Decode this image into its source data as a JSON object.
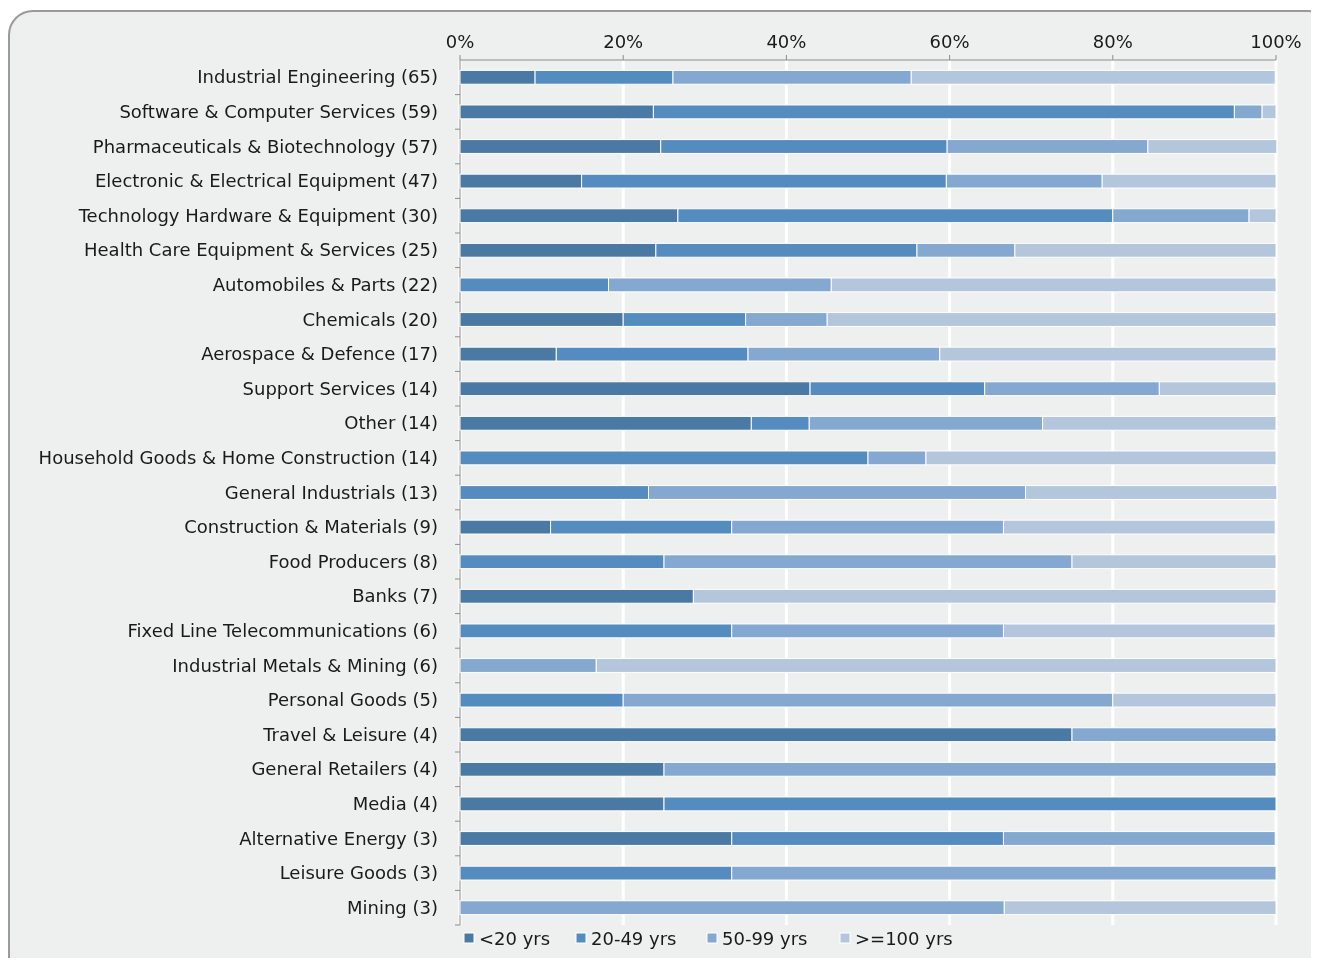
{
  "chart_data": {
    "type": "bar",
    "orientation": "horizontal",
    "stacked": true,
    "categories": [
      "Industrial Engineering (65)",
      "Software & Computer Services (59)",
      "Pharmaceuticals & Biotechnology (57)",
      "Electronic & Electrical Equipment (47)",
      "Technology Hardware & Equipment (30)",
      "Health Care Equipment & Services (25)",
      "Automobiles & Parts (22)",
      "Chemicals (20)",
      "Aerospace & Defence (17)",
      "Support Services (14)",
      "Other (14)",
      "Household Goods & Home Construction (14)",
      "General Industrials (13)",
      "Construction & Materials (9)",
      "Food Producers (8)",
      "Banks (7)",
      "Fixed Line Telecommunications (6)",
      "Industrial Metals & Mining (6)",
      "Personal Goods (5)",
      "Travel & Leisure (4)",
      "General Retailers (4)",
      "Media (4)",
      "Alternative Energy (3)",
      "Leisure Goods (3)",
      "Mining (3)"
    ],
    "series": [
      {
        "name": "<20 yrs",
        "color": "#4a7aa3",
        "values": [
          9.2,
          23.7,
          24.6,
          14.9,
          26.7,
          24,
          0,
          20,
          11.8,
          42.9,
          35.7,
          0,
          0,
          11.1,
          0,
          28.6,
          0,
          0,
          0,
          75,
          25,
          25,
          33.3,
          0,
          0
        ]
      },
      {
        "name": "20-49 yrs",
        "color": "#558cc0",
        "values": [
          16.9,
          71.2,
          35.1,
          44.7,
          53.3,
          32,
          18.2,
          15,
          23.5,
          21.4,
          7.1,
          50,
          23.1,
          22.2,
          25,
          0,
          33.3,
          0,
          20,
          0,
          0,
          75,
          33.3,
          33.3,
          0
        ]
      },
      {
        "name": "50-99 yrs",
        "color": "#84a8d0",
        "values": [
          29.2,
          3.4,
          24.6,
          19.1,
          16.7,
          12,
          27.3,
          10,
          23.5,
          21.4,
          28.6,
          7.1,
          46.2,
          33.3,
          50,
          0,
          33.3,
          16.7,
          60,
          25,
          75,
          0,
          33.3,
          66.7,
          66.7
        ]
      },
      {
        "name": ">=100 yrs",
        "color": "#b4c6dc",
        "values": [
          44.6,
          1.7,
          15.8,
          21.3,
          3.3,
          32,
          54.5,
          55,
          41.2,
          14.3,
          28.6,
          42.9,
          30.8,
          33.3,
          25,
          71.4,
          33.3,
          83.3,
          20,
          0,
          0,
          0,
          0,
          0,
          33.3
        ]
      }
    ],
    "xlim": [
      0,
      100
    ],
    "xticks": [
      {
        "value": 0,
        "label": "0%"
      },
      {
        "value": 20,
        "label": "20%"
      },
      {
        "value": 40,
        "label": "40%"
      },
      {
        "value": 60,
        "label": "60%"
      },
      {
        "value": 80,
        "label": "80%"
      },
      {
        "value": 100,
        "label": "100%"
      }
    ],
    "grid": "x",
    "legend": "bottom"
  }
}
